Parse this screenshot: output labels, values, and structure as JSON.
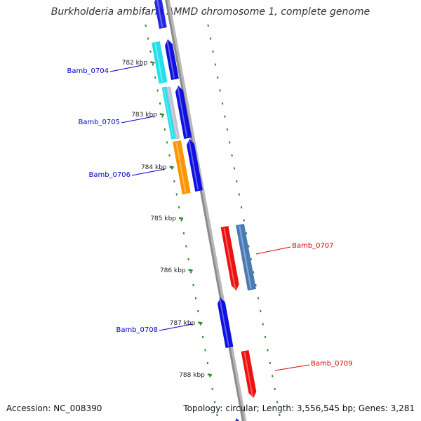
{
  "title": "Burkholderia ambifaria AMMD chromosome 1, complete genome",
  "footer": {
    "accession": "Accession: NC_008390",
    "topology": "Topology: circular; Length: 3,556,545 bp; Genes: 3,281"
  },
  "colors": {
    "backbone": "#8c8c8c",
    "tick": "#2e8b2e",
    "strand_minus": "#1010e0",
    "strand_plus": "#ee1111",
    "cds_cyan": "#22e0ee",
    "cds_orange": "#ff9500",
    "cds_steel": "#4a7ab5",
    "label_minus": "#0000cc",
    "label_plus": "#dd0000"
  },
  "ticks": [
    {
      "label": "782 kbp"
    },
    {
      "label": "783 kbp"
    },
    {
      "label": "784 kbp"
    },
    {
      "label": "785 kbp"
    },
    {
      "label": "786 kbp"
    },
    {
      "label": "787 kbp"
    },
    {
      "label": "788 kbp"
    }
  ],
  "genes": [
    {
      "label": "Bamb_0704",
      "strand": "minus"
    },
    {
      "label": "Bamb_0705",
      "strand": "minus"
    },
    {
      "label": "Bamb_0706",
      "strand": "minus"
    },
    {
      "label": "Bamb_0707",
      "strand": "plus"
    },
    {
      "label": "Bamb_0708",
      "strand": "minus"
    },
    {
      "label": "Bamb_0709",
      "strand": "plus"
    }
  ]
}
